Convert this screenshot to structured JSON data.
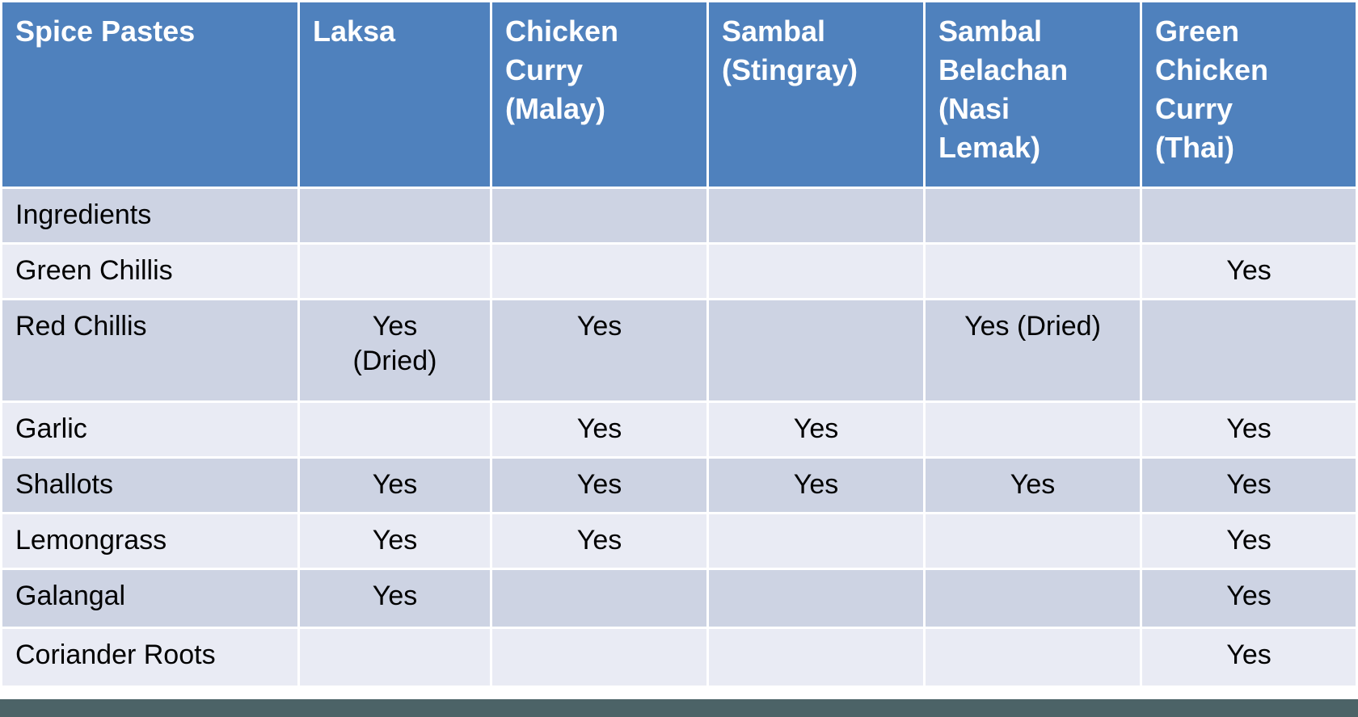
{
  "table": {
    "header": {
      "corner_label": "Spice Pastes",
      "columns": [
        "Laksa",
        "Chicken\nCurry\n(Malay)",
        "Sambal\n(Stingray)",
        "Sambal\nBelachan\n(Nasi\nLemak)",
        "Green\nChicken\nCurry\n(Thai)"
      ]
    },
    "rows": [
      {
        "label": "Ingredients",
        "values": [
          "",
          "",
          "",
          "",
          ""
        ]
      },
      {
        "label": "Green Chillis",
        "values": [
          "",
          "",
          "",
          "",
          "Yes"
        ]
      },
      {
        "label": "Red Chillis",
        "values": [
          "Yes\n(Dried)",
          "Yes",
          "",
          "Yes (Dried)",
          ""
        ]
      },
      {
        "label": "Garlic",
        "values": [
          "",
          "Yes",
          "Yes",
          "",
          "Yes"
        ]
      },
      {
        "label": "Shallots",
        "values": [
          "Yes",
          "Yes",
          "Yes",
          "Yes",
          "Yes"
        ]
      },
      {
        "label": "Lemongrass",
        "values": [
          "Yes",
          "Yes",
          "",
          "",
          "Yes"
        ]
      },
      {
        "label": "Galangal",
        "values": [
          "Yes",
          "",
          "",
          "",
          "Yes"
        ]
      },
      {
        "label": "Coriander Roots",
        "values": [
          "",
          "",
          "",
          "",
          "Yes"
        ]
      }
    ],
    "colors": {
      "header_bg": "#4F81BD",
      "header_text": "#FFFFFF",
      "band_dark": "#CDD3E3",
      "band_light": "#E9EBF4",
      "body_text": "#000000",
      "grid": "#FFFFFF",
      "footer_bar": "#4C6367"
    }
  }
}
